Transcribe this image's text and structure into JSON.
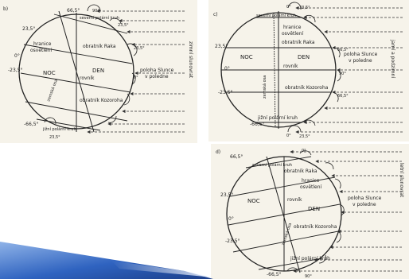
{
  "panel_b": {
    "letter": "b)",
    "lat_top_right": "66,5°",
    "lat_left_upper": "23,5°",
    "lat_left_zero": "0°",
    "lat_left_lower": "-23,5°",
    "lat_bottom_left": "-66,5°",
    "lat_right_upper": "23,5°",
    "lat_right_zero": "0°",
    "north_circle": "severní polární kruh",
    "terminator_a": "hranice",
    "terminator_b": "osvětlení",
    "cancer": "obratník Raka",
    "equator": "rovník",
    "capricorn": "obratník Kozoroha",
    "south_circle": "jižní polární kruh",
    "axis": "zemská osa",
    "night": "NOC",
    "day": "DEN",
    "sun_a": "poloha Slunce",
    "sun_b": "v poledne",
    "side": "zimní slunovrat",
    "ang_top": "90°",
    "ang_right": "23,5°",
    "ang_bottom": "23,5°"
  },
  "panel_c": {
    "letter": "c)",
    "north_circle": "severní polární kruh",
    "terminator_a": "hranice",
    "terminator_b": "osvětlení",
    "cancer": "obratník Raka",
    "lat_upper": "23,5°",
    "night": "NOC",
    "day": "DEN",
    "lat_zero": "0°",
    "equator": "rovník",
    "axis": "zemská osa",
    "capricorn": "obratník Kozoroha",
    "lat_lower": "-23,5°",
    "south_circle": "jižní polární kruh",
    "lat_south": "-66,5°",
    "ang_right_upper": "66,5°",
    "ang_right_zero": "90°",
    "ang_right_lower": "66,5°",
    "sun_a": "poloha Slunce",
    "sun_b": "v poledne",
    "side": "jarní a podzimní",
    "ang_top_a": "0°",
    "ang_top_b": "23,5°",
    "ang_bot_a": "0°",
    "ang_bot_b": "23,5°"
  },
  "panel_d": {
    "letter": "d)",
    "lat_north": "66,5°",
    "north_circle": "severní polární kruh",
    "cancer": "obratník Raka",
    "terminator_a": "hranice",
    "terminator_b": "osvětlení",
    "lat_upper": "23,5°",
    "night": "NOC",
    "equator": "rovník",
    "day": "DEN",
    "lat_zero": "0°",
    "capricorn": "obratník Kozoroha",
    "axis": "zemská osa",
    "lat_lower": "-23,5°",
    "south_circle": "jižní polární kruh",
    "lat_south": "-66,5°",
    "sun_a": "poloha Slunce",
    "sun_b": "v poledne",
    "side": "letní slunovrat",
    "ang_top": "0°",
    "ang_bottom": "90°"
  }
}
